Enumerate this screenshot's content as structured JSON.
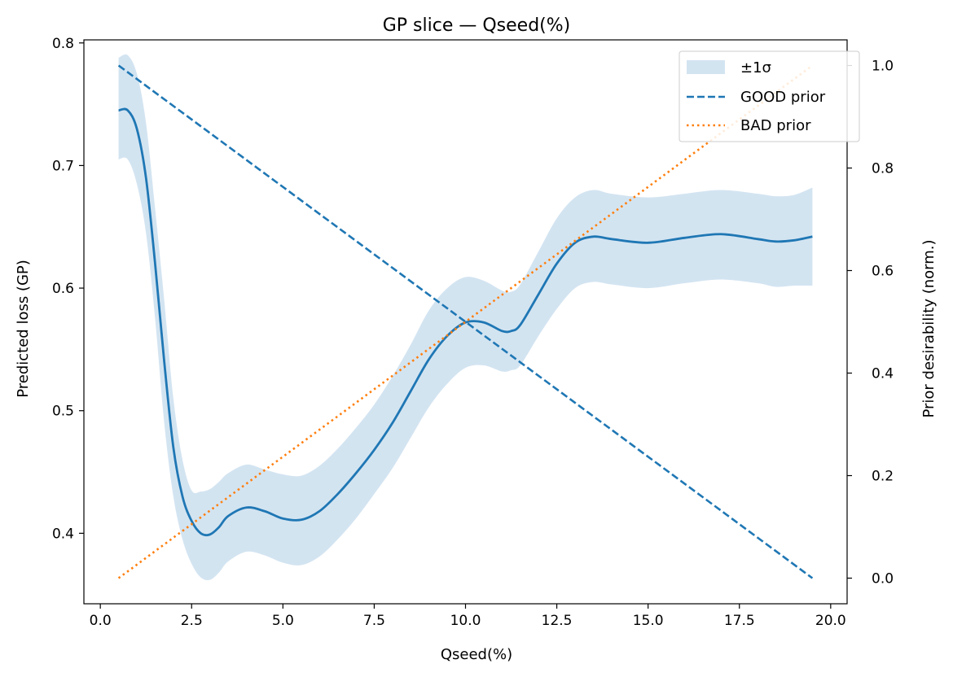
{
  "chart_data": {
    "type": "line",
    "title": "GP slice — Qseed(%)",
    "xlabel": "Qseed(%)",
    "ylabel": "Predicted loss (GP)",
    "y2label": "Prior desirability (norm.)",
    "xlim": [
      -0.45,
      20.45
    ],
    "ylim": [
      0.3425,
      0.8025
    ],
    "y2lim": [
      -0.05,
      1.05
    ],
    "xticks": [
      0.0,
      2.5,
      5.0,
      7.5,
      10.0,
      12.5,
      15.0,
      17.5,
      20.0
    ],
    "xtick_labels": [
      "0.0",
      "2.5",
      "5.0",
      "7.5",
      "10.0",
      "12.5",
      "15.0",
      "17.5",
      "20.0"
    ],
    "yticks": [
      0.4,
      0.5,
      0.6,
      0.7,
      0.8
    ],
    "ytick_labels": [
      "0.4",
      "0.5",
      "0.6",
      "0.7",
      "0.8"
    ],
    "y2ticks": [
      0.0,
      0.2,
      0.4,
      0.6,
      0.8,
      1.0
    ],
    "y2tick_labels": [
      "0.0",
      "0.2",
      "0.4",
      "0.6",
      "0.8",
      "1.0"
    ],
    "grid": false,
    "legend_position": "top-right",
    "legend": [
      {
        "label": "±1σ",
        "style": "band",
        "color": "#aecde6"
      },
      {
        "label": "GOOD prior",
        "style": "dashed",
        "color": "#1f77b4"
      },
      {
        "label": "BAD prior",
        "style": "dotted",
        "color": "#ff7f0e"
      }
    ],
    "gp_mean": {
      "color": "#1f77b4",
      "x": [
        0.5,
        0.75,
        1.0,
        1.25,
        1.5,
        1.75,
        2.0,
        2.25,
        2.5,
        2.75,
        3.0,
        3.25,
        3.5,
        4.0,
        4.5,
        5.0,
        5.5,
        6.0,
        6.5,
        7.0,
        7.5,
        8.0,
        8.5,
        9.0,
        9.5,
        10.0,
        10.5,
        11.0,
        11.25,
        11.5,
        12.0,
        12.5,
        13.0,
        13.5,
        14.0,
        15.0,
        16.0,
        17.0,
        18.0,
        18.5,
        19.0,
        19.5
      ],
      "y": [
        0.745,
        0.745,
        0.73,
        0.69,
        0.62,
        0.54,
        0.47,
        0.43,
        0.41,
        0.4,
        0.399,
        0.405,
        0.414,
        0.421,
        0.418,
        0.412,
        0.411,
        0.418,
        0.432,
        0.449,
        0.468,
        0.49,
        0.516,
        0.542,
        0.561,
        0.572,
        0.572,
        0.565,
        0.565,
        0.57,
        0.595,
        0.62,
        0.637,
        0.642,
        0.64,
        0.637,
        0.641,
        0.644,
        0.64,
        0.638,
        0.639,
        0.642
      ]
    },
    "band": {
      "color": "#aecde6",
      "upper": [
        0.788,
        0.79,
        0.775,
        0.735,
        0.665,
        0.59,
        0.51,
        0.46,
        0.435,
        0.434,
        0.436,
        0.442,
        0.449,
        0.456,
        0.452,
        0.448,
        0.447,
        0.455,
        0.469,
        0.486,
        0.505,
        0.528,
        0.554,
        0.582,
        0.6,
        0.609,
        0.606,
        0.598,
        0.597,
        0.603,
        0.63,
        0.657,
        0.674,
        0.68,
        0.677,
        0.674,
        0.677,
        0.68,
        0.677,
        0.675,
        0.676,
        0.682
      ],
      "lower": [
        0.705,
        0.705,
        0.685,
        0.645,
        0.575,
        0.49,
        0.43,
        0.395,
        0.375,
        0.364,
        0.362,
        0.368,
        0.377,
        0.385,
        0.382,
        0.376,
        0.374,
        0.381,
        0.395,
        0.412,
        0.432,
        0.453,
        0.478,
        0.503,
        0.522,
        0.535,
        0.537,
        0.532,
        0.533,
        0.537,
        0.561,
        0.583,
        0.6,
        0.605,
        0.603,
        0.6,
        0.604,
        0.607,
        0.604,
        0.601,
        0.602,
        0.602
      ]
    },
    "good_prior": {
      "x": [
        0.5,
        19.5
      ],
      "y2": [
        1.0,
        0.0
      ],
      "color": "#1f77b4"
    },
    "bad_prior": {
      "x": [
        0.5,
        19.5
      ],
      "y2": [
        0.0,
        1.0
      ],
      "color": "#ff7f0e"
    }
  }
}
